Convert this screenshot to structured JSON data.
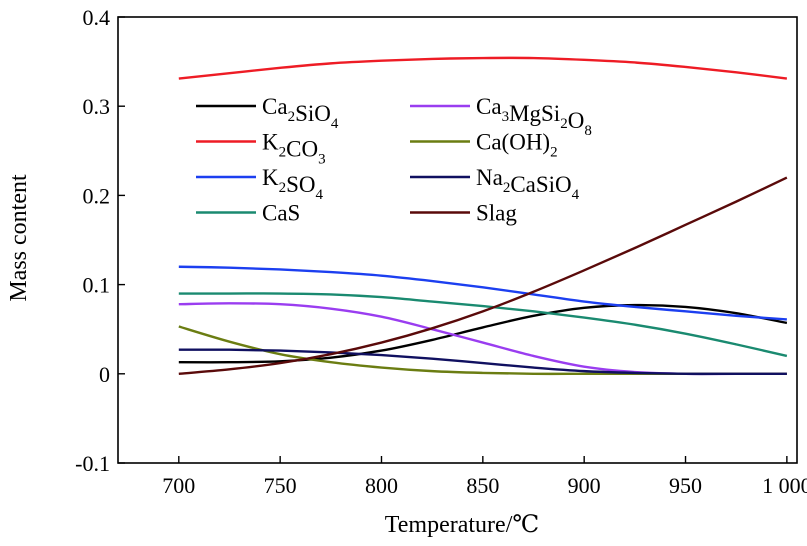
{
  "chart_data": {
    "type": "line",
    "xlabel": "Temperature/℃",
    "ylabel": "Mass content",
    "xlim": [
      670,
      1005
    ],
    "ylim": [
      -0.1,
      0.4
    ],
    "x_ticks": [
      {
        "value": 700,
        "label": "700"
      },
      {
        "value": 750,
        "label": "750"
      },
      {
        "value": 800,
        "label": "800"
      },
      {
        "value": 850,
        "label": "850"
      },
      {
        "value": 900,
        "label": "900"
      },
      {
        "value": 950,
        "label": "950"
      },
      {
        "value": 1000,
        "label": "1 000"
      }
    ],
    "y_ticks": [
      {
        "value": -0.1,
        "label": "-0.1"
      },
      {
        "value": 0,
        "label": "0"
      },
      {
        "value": 0.1,
        "label": "0.1"
      },
      {
        "value": 0.2,
        "label": "0.2"
      },
      {
        "value": 0.3,
        "label": "0.3"
      },
      {
        "value": 0.4,
        "label": "0.4"
      }
    ],
    "grid": false,
    "legend_position": "top-left",
    "x": [
      700,
      725,
      750,
      775,
      800,
      825,
      850,
      875,
      900,
      925,
      950,
      975,
      1000
    ],
    "series": [
      {
        "name": "Ca2SiO4",
        "parts": [
          [
            "Ca",
            ""
          ],
          [
            "2",
            "sub"
          ],
          [
            "SiO",
            ""
          ],
          [
            "4",
            "sub"
          ]
        ],
        "color": "#000000",
        "values": [
          0.013,
          0.013,
          0.014,
          0.018,
          0.026,
          0.038,
          0.052,
          0.065,
          0.074,
          0.077,
          0.075,
          0.068,
          0.057
        ]
      },
      {
        "name": "K2CO3",
        "parts": [
          [
            "K",
            ""
          ],
          [
            "2",
            "sub"
          ],
          [
            "CO",
            ""
          ],
          [
            "3",
            "sub"
          ]
        ],
        "color": "#ee1c25",
        "values": [
          0.331,
          0.337,
          0.343,
          0.348,
          0.351,
          0.353,
          0.354,
          0.354,
          0.352,
          0.349,
          0.344,
          0.338,
          0.331
        ]
      },
      {
        "name": "K2SO4",
        "parts": [
          [
            "K",
            ""
          ],
          [
            "2",
            "sub"
          ],
          [
            "SO",
            ""
          ],
          [
            "4",
            "sub"
          ]
        ],
        "color": "#1c3ff0",
        "values": [
          0.12,
          0.119,
          0.117,
          0.114,
          0.11,
          0.104,
          0.097,
          0.089,
          0.081,
          0.075,
          0.07,
          0.065,
          0.061
        ]
      },
      {
        "name": "CaS",
        "parts": [
          [
            "CaS",
            ""
          ]
        ],
        "color": "#1a8a70",
        "values": [
          0.09,
          0.09,
          0.09,
          0.089,
          0.086,
          0.081,
          0.076,
          0.07,
          0.063,
          0.055,
          0.045,
          0.033,
          0.02
        ]
      },
      {
        "name": "Ca3MgSi2O8",
        "parts": [
          [
            "Ca",
            ""
          ],
          [
            "3",
            "sub"
          ],
          [
            "MgSi",
            ""
          ],
          [
            "2",
            "sub"
          ],
          [
            "O",
            ""
          ],
          [
            "8",
            "sub"
          ]
        ],
        "color": "#9a3df0",
        "values": [
          0.078,
          0.079,
          0.078,
          0.073,
          0.064,
          0.05,
          0.035,
          0.02,
          0.008,
          0.002,
          0.0,
          0.0,
          0.0
        ]
      },
      {
        "name": "Ca(OH)2",
        "parts": [
          [
            "Ca(OH)",
            ""
          ],
          [
            "2",
            "sub"
          ]
        ],
        "color": "#6b7d12",
        "values": [
          0.053,
          0.036,
          0.022,
          0.013,
          0.007,
          0.003,
          0.001,
          0.0,
          0.0,
          0.0,
          0.0,
          0.0,
          0.0
        ]
      },
      {
        "name": "Na2CaSiO4",
        "parts": [
          [
            "Na",
            ""
          ],
          [
            "2",
            "sub"
          ],
          [
            "CaSiO",
            ""
          ],
          [
            "4",
            "sub"
          ]
        ],
        "color": "#101060",
        "values": [
          0.027,
          0.027,
          0.026,
          0.024,
          0.021,
          0.017,
          0.012,
          0.007,
          0.003,
          0.001,
          0.0,
          0.0,
          0.0
        ]
      },
      {
        "name": "Slag",
        "parts": [
          [
            "Slag",
            ""
          ]
        ],
        "color": "#5a0a0a",
        "values": [
          0.0,
          0.005,
          0.012,
          0.022,
          0.035,
          0.051,
          0.07,
          0.092,
          0.116,
          0.141,
          0.167,
          0.193,
          0.22
        ]
      }
    ]
  }
}
